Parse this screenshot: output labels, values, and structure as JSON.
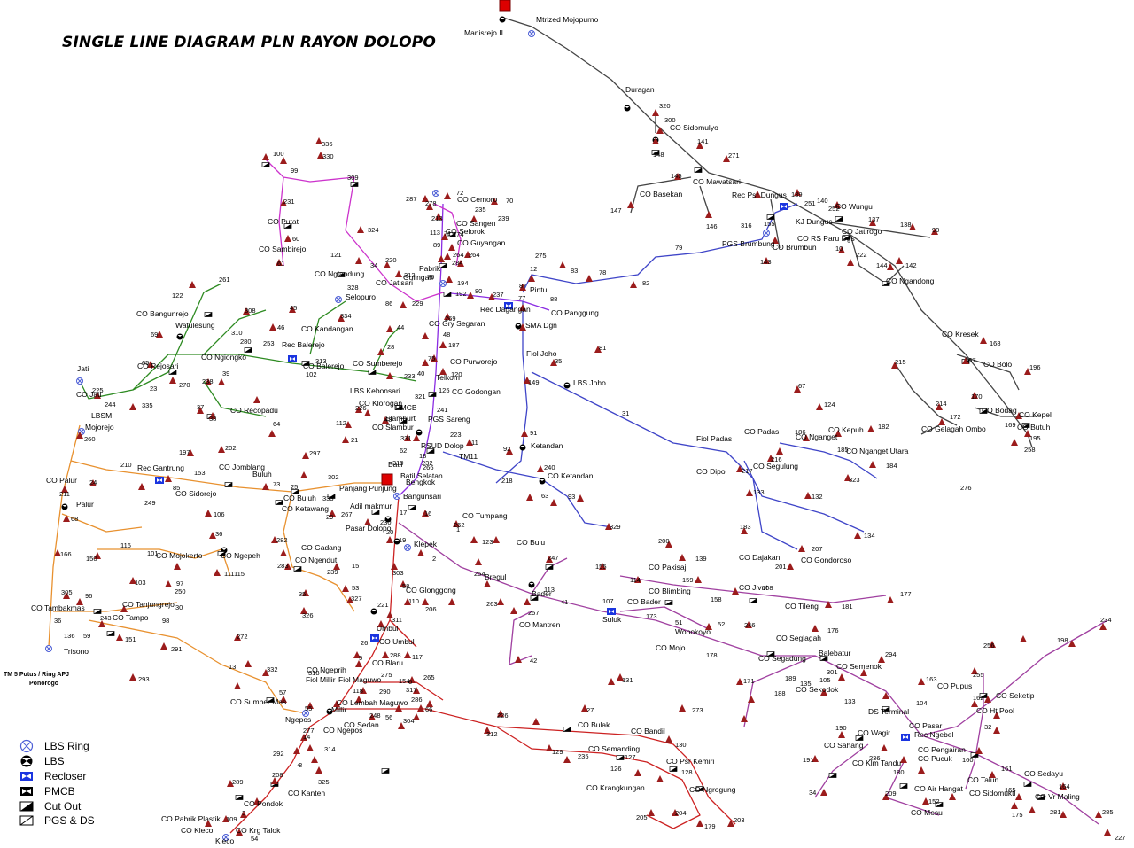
{
  "title": "SINGLE LINE DIAGRAM PLN RAYON DOLOPO",
  "source_note": [
    "TM 5 Putus / Ring APJ",
    "Ponorogo"
  ],
  "colors": {
    "feeder_purple": "#8a2be2",
    "feeder_blue": "#3f45c8",
    "feeder_magenta": "#cc33cc",
    "feeder_green": "#2e8b22",
    "feeder_orange": "#e8912f",
    "feeder_red": "#cc2222",
    "feeder_gray": "#444444",
    "feeder_plum": "#a040a0",
    "substation": "#dd0000",
    "triangle": "#9b1c1c",
    "lbs_ring": "#4d5fd6",
    "recloser": "#1b35e0"
  },
  "legend": [
    {
      "icon": "lbs-ring-icon",
      "label": "LBS Ring"
    },
    {
      "icon": "lbs-icon",
      "label": "LBS"
    },
    {
      "icon": "recloser-icon",
      "label": "Recloser"
    },
    {
      "icon": "pmcb-icon",
      "label": "PMCB"
    },
    {
      "icon": "cut-out-icon",
      "label": "Cut Out"
    },
    {
      "icon": "pgs-ds-icon",
      "label": "PGS & DS"
    }
  ],
  "labels": [
    "Manisrejo II",
    "Mtrized Mojopurno",
    "Duragan",
    "CO Sidomulyo",
    "CO Mawatsari",
    "CO Basekan",
    "Rec Psr Dungus",
    "KJ Dungus",
    "CO Wungu",
    "CO Jatirogo",
    "CO RS Paru Dgs",
    "PGS Brumbung",
    "CO Brumbun",
    "CO Ngandong",
    "CO Kresek",
    "CO Bolo",
    "CO Bodag",
    "CO Kepel",
    "CO Gelagah Ombo",
    "CO Butuh",
    "CO Cemoro",
    "CO Sangen",
    "CO Selorok",
    "CO Guyangan",
    "Pabrik",
    "Gulingan",
    "CO Jatisari",
    "CO Nglandung",
    "Selopuro",
    "CO Putat",
    "CO Sambirejo",
    "CO Bangunrejo",
    "Watulesung",
    "CO Kandangan",
    "Rec Balerejo",
    "CO Balerejo",
    "CO Ngiongko",
    "CO Rejosari",
    "Jati",
    "CO Jati",
    "LBSM",
    "Mojorejo",
    "CO Recopadu",
    "CO Sumberejo",
    "LBS Kebonsari",
    "CO Klorogan",
    "PMCB",
    "Slamburt",
    "PGS Sareng",
    "CO Slambur",
    "RSUD Dolop",
    "TM11",
    "Rec Dagangan",
    "CO Panggung",
    "SMA Dgn",
    "Pintu",
    "CO Gry Segaran",
    "CO Purworejo",
    "Telkom",
    "CO Godongan",
    "Fiol Joho",
    "LBS Joho",
    "Ketandan",
    "CO Ketandan",
    "Fiol Padas",
    "CO Padas",
    "CO Nganget",
    "CO Kepuh",
    "CO Nganget Utara",
    "CO Dipo",
    "CO Segulung",
    "CO Dajakan",
    "CO Gondoroso",
    "Rec Gantrung",
    "CO Sidorejo",
    "CO Palur",
    "Palur",
    "CO Jomblang",
    "Buluh",
    "CO Buluh",
    "CO Ketawang",
    "Panjang Punjung",
    "Bengkok",
    "Batil",
    "Batil Selatan",
    "Bangunsari",
    "Adil makmur",
    "Pasar Dolopo",
    "CO Tumpang",
    "Klepek",
    "CO Bulu",
    "Bregul",
    "Bader",
    "CO Bader",
    "CO Mantren",
    "Suluk",
    "CO Pakisaji",
    "CO Blimbing",
    "CO Jivut",
    "CO Tileng",
    "Wonokoyo",
    "CO Mojo",
    "CO Seglagah",
    "Balebatur",
    "CO Segadung",
    "CO Semenok",
    "CO Sekodok",
    "DS Terminal",
    "Rec Ngebel",
    "CO Pasar",
    "CO Pupus",
    "CO Seketip",
    "CO Ht Pool",
    "CO Wagir",
    "CO Sahang",
    "CO Pengairan",
    "CO Pucuk",
    "CO Klm Tandu",
    "CO Air Hangat",
    "CO Mesu",
    "CO Talun",
    "CO Sedayu",
    "CO Sidomukti",
    "CO Vr Maling",
    "CO Gadang",
    "CO Ngendut",
    "CO Mojokerto",
    "CO Ngepeh",
    "CO Tanjungrejo",
    "CO Tambakmas",
    "CO Tampo",
    "Trisono",
    "CO Glonggong",
    "Umbul",
    "CO Umbul",
    "CO Blaru",
    "CO Ngeprih",
    "Fiol Millir",
    "Fiol Maguwo",
    "CO Sumber Mas",
    "CO Lembah Maguwo",
    "Ngepos",
    "Millir",
    "CO Sedan",
    "CO Ngepos",
    "CO Kanten",
    "CO Pondok",
    "CO Pabrik Plastik",
    "CO Kleco",
    "CO Krg Talok",
    "Kleco",
    "CO Bulak",
    "CO Bandil",
    "CO Semanding",
    "CO Psr Kemiri",
    "CO Krangkungan",
    "CO Ngrogung"
  ],
  "numbers": [
    "320",
    "300",
    "141",
    "148",
    "271",
    "145",
    "147",
    "146",
    "139",
    "140",
    "251",
    "252",
    "137",
    "138",
    "90",
    "316",
    "155",
    "143",
    "10",
    "222",
    "144",
    "142",
    "168",
    "167",
    "196",
    "215",
    "214",
    "170",
    "172",
    "169",
    "195",
    "258",
    "336",
    "330",
    "100",
    "99",
    "309",
    "231",
    "60",
    "61",
    "324",
    "121",
    "34",
    "220",
    "212",
    "76",
    "287",
    "278",
    "72",
    "70",
    "213",
    "113",
    "71",
    "274",
    "235",
    "89",
    "264",
    "264",
    "239",
    "284",
    "194",
    "192",
    "80",
    "237",
    "229",
    "86",
    "328",
    "334",
    "45",
    "46",
    "308",
    "310",
    "280",
    "253",
    "122",
    "261",
    "69",
    "65",
    "23",
    "270",
    "238",
    "39",
    "37",
    "38",
    "64",
    "335",
    "244",
    "225",
    "260",
    "44",
    "28",
    "313",
    "102",
    "233",
    "40",
    "125",
    "120",
    "321",
    "241",
    "226",
    "43",
    "112",
    "21",
    "331",
    "62",
    "18",
    "232",
    "266",
    "319",
    "223",
    "11",
    "269",
    "48",
    "187",
    "75",
    "275",
    "12",
    "83",
    "78",
    "82",
    "87",
    "88",
    "77",
    "79",
    "81",
    "35",
    "149",
    "91",
    "92",
    "240",
    "218",
    "31",
    "63",
    "93",
    "329",
    "67",
    "124",
    "186",
    "185",
    "182",
    "184",
    "323",
    "216",
    "217",
    "133",
    "132",
    "183",
    "134",
    "207",
    "201",
    "197",
    "202",
    "297",
    "210",
    "153",
    "85",
    "73",
    "25",
    "24",
    "249",
    "106",
    "302",
    "333",
    "211",
    "68",
    "267",
    "29",
    "230",
    "17",
    "16",
    "262",
    "1",
    "20",
    "19",
    "123",
    "2",
    "247",
    "254",
    "113",
    "257",
    "41",
    "42",
    "263",
    "155",
    "114",
    "200",
    "139",
    "159",
    "158",
    "108",
    "107",
    "173",
    "51",
    "52",
    "246",
    "176",
    "178",
    "181",
    "177",
    "234",
    "198",
    "256",
    "255",
    "163",
    "162",
    "32",
    "160",
    "161",
    "164",
    "165",
    "175",
    "281",
    "285",
    "227",
    "276",
    "282",
    "283",
    "239",
    "15",
    "53",
    "327",
    "35",
    "326",
    "36",
    "111",
    "150",
    "115",
    "101",
    "116",
    "103",
    "250",
    "30",
    "166",
    "97",
    "305",
    "96",
    "36",
    "243",
    "98",
    "136",
    "59",
    "151",
    "291",
    "293",
    "303",
    "58",
    "110",
    "206",
    "221",
    "311",
    "26",
    "288",
    "117",
    "5",
    "275",
    "154",
    "6",
    "265",
    "317",
    "318",
    "118",
    "290",
    "286",
    "13",
    "332",
    "57",
    "55",
    "272",
    "248",
    "56",
    "304",
    "66",
    "277",
    "14",
    "314",
    "8",
    "292",
    "4",
    "325",
    "289",
    "208",
    "109",
    "3",
    "54",
    "27",
    "226",
    "312",
    "129",
    "235",
    "126",
    "127",
    "128",
    "273",
    "130",
    "131",
    "205",
    "204",
    "179",
    "203",
    "190",
    "236",
    "191",
    "180",
    "34",
    "209",
    "152",
    "171",
    "188",
    "189",
    "135",
    "133",
    "301",
    "294",
    "104",
    "105",
    "174",
    "194",
    "106"
  ]
}
